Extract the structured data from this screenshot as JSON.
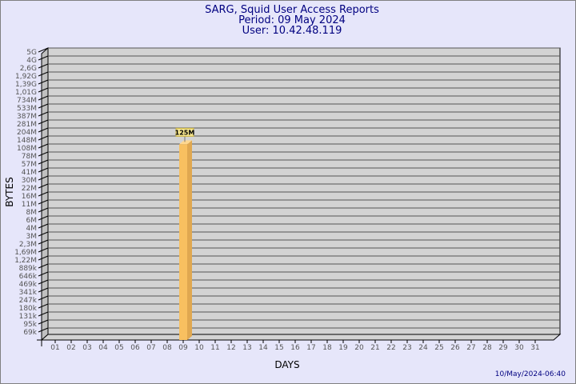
{
  "chart_data": {
    "type": "bar",
    "title": "SARG, Squid User Access Reports",
    "subtitle_lines": [
      "Period: 09 May 2024",
      "User: 10.42.48.119"
    ],
    "xlabel": "DAYS",
    "ylabel": "BYTES",
    "y_scale": "log",
    "y_tick_labels": [
      "5G",
      "4G",
      "2,6G",
      "1,92G",
      "1,39G",
      "1,01G",
      "734M",
      "533M",
      "387M",
      "281M",
      "204M",
      "148M",
      "108M",
      "78M",
      "57M",
      "41M",
      "30M",
      "22M",
      "16M",
      "11M",
      "8M",
      "6M",
      "4M",
      "3M",
      "2,3M",
      "1,69M",
      "1,22M",
      "889k",
      "646k",
      "469k",
      "341k",
      "247k",
      "180k",
      "131k",
      "95k",
      "69k"
    ],
    "categories": [
      "01",
      "02",
      "03",
      "04",
      "05",
      "06",
      "07",
      "08",
      "09",
      "10",
      "11",
      "12",
      "13",
      "14",
      "15",
      "16",
      "17",
      "18",
      "19",
      "20",
      "21",
      "22",
      "23",
      "24",
      "25",
      "26",
      "27",
      "28",
      "29",
      "30",
      "31"
    ],
    "series": [
      {
        "values": {
          "09": 125000000
        },
        "value_labels": {
          "09": "125M"
        }
      }
    ],
    "grid": true,
    "style": "3d",
    "colors": {
      "bar": "#f8c060",
      "bar_side": "#e0a850",
      "wall": "#d3d3d3",
      "background": "#e6e6fa",
      "title": "#000080"
    }
  },
  "footer": {
    "timestamp": "10/May/2024-06:40"
  }
}
